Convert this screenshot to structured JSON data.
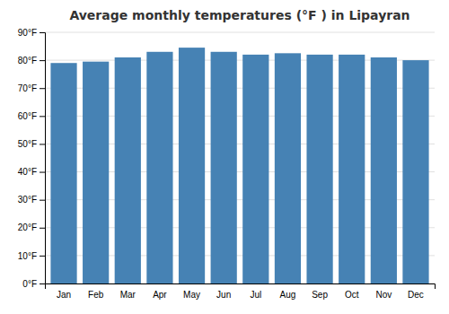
{
  "chart_data": {
    "type": "bar",
    "title": "Average monthly temperatures (°F ) in Lipayran",
    "categories": [
      "Jan",
      "Feb",
      "Mar",
      "Apr",
      "May",
      "Jun",
      "Jul",
      "Aug",
      "Sep",
      "Oct",
      "Nov",
      "Dec"
    ],
    "values": [
      79,
      79.5,
      81,
      83,
      84.5,
      83,
      82,
      82.5,
      82,
      82,
      81,
      80
    ],
    "ylim": [
      0,
      90
    ],
    "yticks": [
      {
        "value": 0,
        "label": "0°F"
      },
      {
        "value": 10,
        "label": "10°F"
      },
      {
        "value": 20,
        "label": "20°F"
      },
      {
        "value": 30,
        "label": "30°F"
      },
      {
        "value": 40,
        "label": "40°F"
      },
      {
        "value": 50,
        "label": "50°F"
      },
      {
        "value": 60,
        "label": "60°F"
      },
      {
        "value": 70,
        "label": "70°F"
      },
      {
        "value": 80,
        "label": "80°F"
      },
      {
        "value": 90,
        "label": "90°F"
      }
    ],
    "grid": true
  }
}
